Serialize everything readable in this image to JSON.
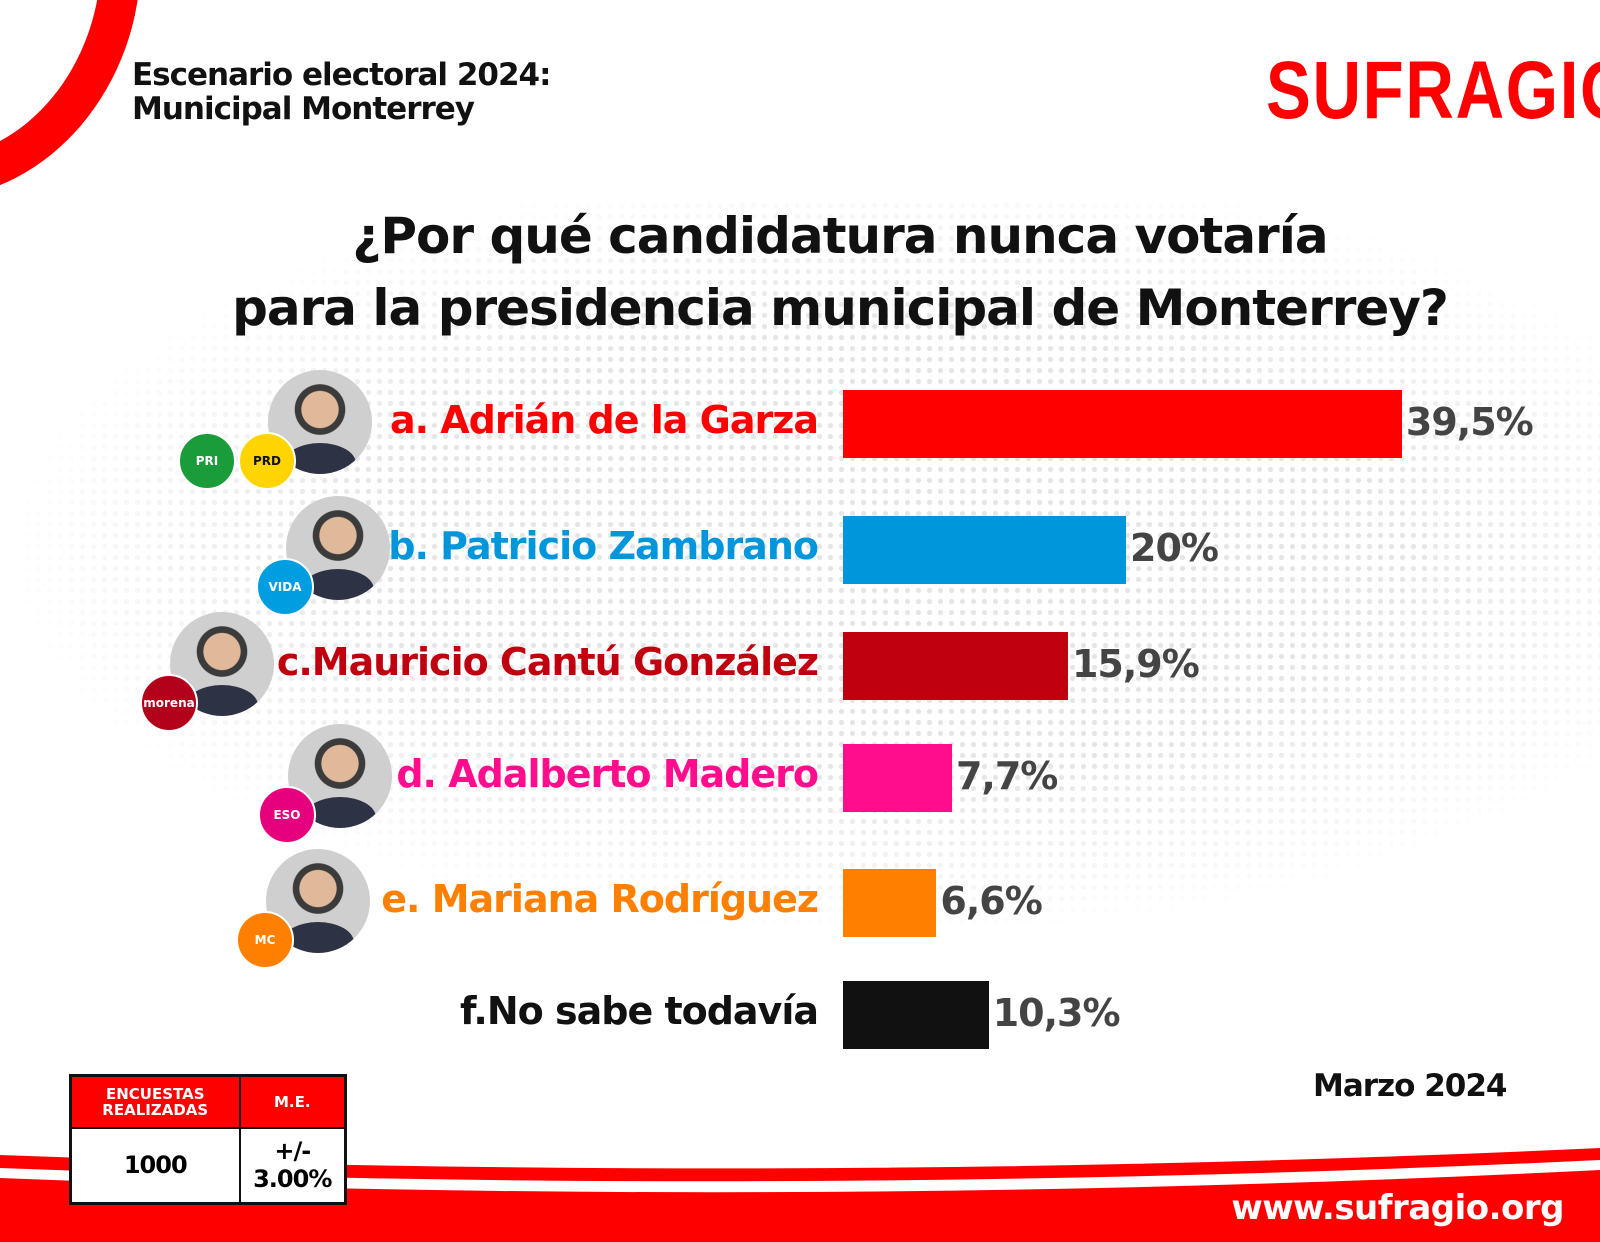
{
  "header": {
    "line1": "Escenario electoral 2024:",
    "line2": "Municipal Monterrey"
  },
  "logo": "SUFRAGIO",
  "chart_data": {
    "type": "bar",
    "title": "¿Por qué candidatura nunca votaría para la presidencia municipal de Monterrey?",
    "title_line1": "¿Por qué candidatura nunca votaría",
    "title_line2": "para la presidencia municipal de Monterrey?",
    "categories": [
      "a. Adrián de la Garza",
      "b. Patricio Zambrano",
      "c.Mauricio Cantú González",
      "d. Adalberto Madero",
      "e. Mariana Rodríguez",
      "f.No sabe todavía"
    ],
    "values": [
      39.5,
      20,
      15.9,
      7.7,
      6.6,
      10.3
    ],
    "value_labels": [
      "39,5%",
      "20%",
      "15,9%",
      "7,7%",
      "6,6%",
      "10,3%"
    ],
    "colors": [
      "#ff0000",
      "#0096db",
      "#c1000f",
      "#ff0d8c",
      "#ff7f00",
      "#111111"
    ],
    "parties": [
      [
        "PRI",
        "PRD"
      ],
      [
        "VIDA"
      ],
      [
        "morena"
      ],
      [
        "ESO"
      ],
      [
        "MC"
      ],
      []
    ],
    "party_colors": [
      [
        "#1a9c3a",
        "#ffd400"
      ],
      [
        "#009ee0"
      ],
      [
        "#b3001b"
      ],
      [
        "#e6007e"
      ],
      [
        "#ff7f00"
      ],
      []
    ],
    "unit": "%"
  },
  "date": "Marzo 2024",
  "table": {
    "headers": [
      "ENCUESTAS REALIZADAS",
      "M.E."
    ],
    "values": [
      "1000",
      "+/- 3.00%"
    ]
  },
  "footer": {
    "url": "www.sufragio.org"
  }
}
